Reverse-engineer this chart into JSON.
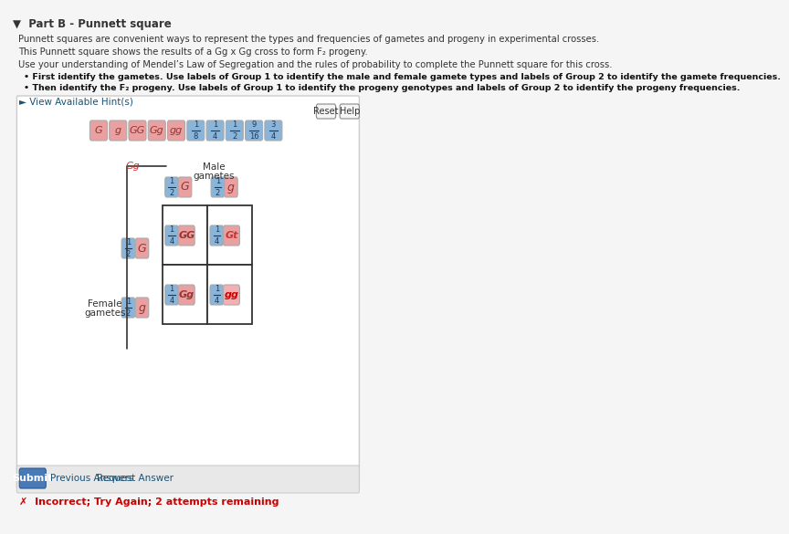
{
  "bg_color": "#f0f0f0",
  "panel_bg": "#e8e8e8",
  "title_text": "Part B - Punnett square",
  "body_lines": [
    "Punnett squares are convenient ways to represent the types and frequencies of gametes and progeny in experimental crosses.",
    "This Punnett square shows the results of a Gg x Gg cross to form F₂ progeny.",
    "Use your understanding of Mendel’s Law of Segregation and the rules of probability to complete the Punnett square for this cross."
  ],
  "bullet1": "First identify the gametes. Use labels of Group 1 to identify the male and female gamete types and labels of Group 2 to identify the gamete frequencies.",
  "bullet2": "Then identify the F₂ progeny. Use labels of Group 1 to identify the progeny genotypes and labels of Group 2 to identify the progeny frequencies.",
  "hint_text": "► View Available Hint(s)",
  "pink_color": "#e8a0a0",
  "blue_color": "#8ab4d8",
  "pink_items_group1": [
    "G",
    "g",
    "GG",
    "Gg",
    "gg"
  ],
  "blue_items_group2": [
    "1/8",
    "1/4",
    "1/2",
    "9/16",
    "3/4"
  ],
  "submit_color": "#4a7ab5",
  "error_color": "#cc0000",
  "reset_help_buttons": [
    "Reset",
    "Help"
  ]
}
